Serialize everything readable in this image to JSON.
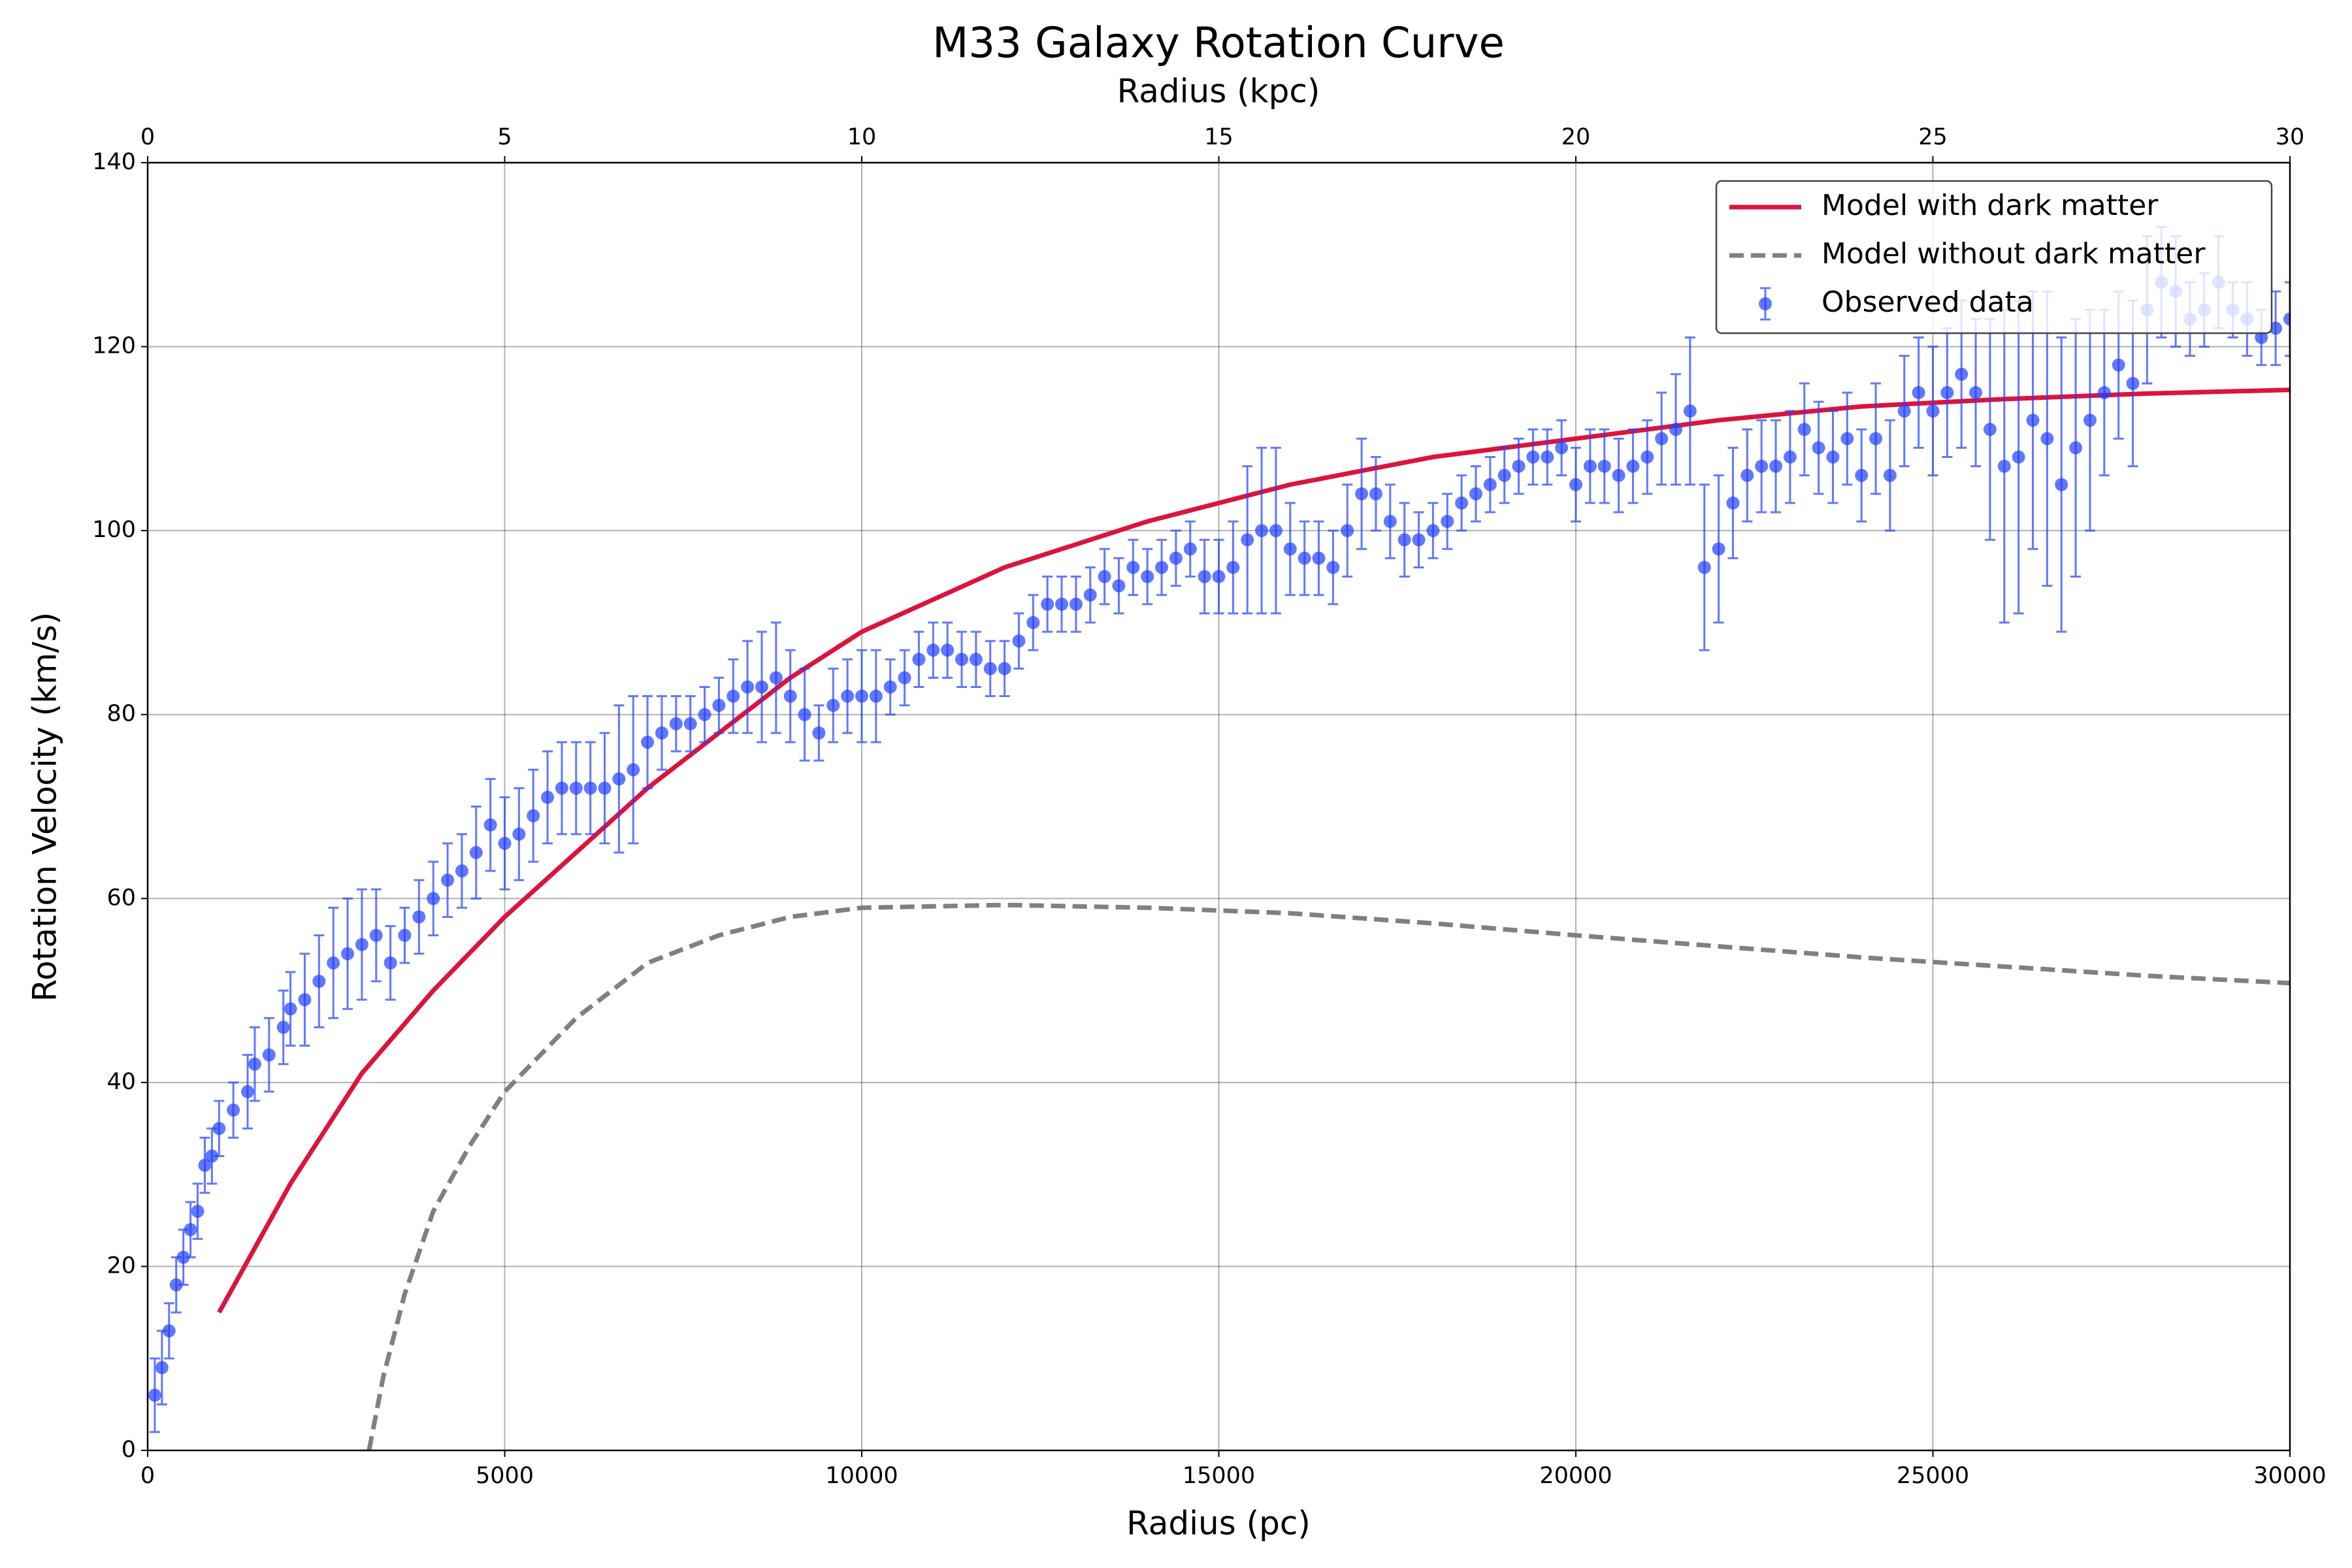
{
  "chart_data": {
    "type": "line",
    "title": "M33 Galaxy Rotation Curve",
    "xlabel": "Radius (pc)",
    "ylabel": "Rotation Velocity (km/s)",
    "x2label": "Radius (kpc)",
    "xlim": [
      0,
      30000
    ],
    "xticks": [
      0,
      5000,
      10000,
      15000,
      20000,
      25000,
      30000
    ],
    "x2lim": [
      0,
      30
    ],
    "x2ticks": [
      0,
      5,
      10,
      15,
      20,
      25,
      30
    ],
    "ylim": [
      0,
      140
    ],
    "yticks": [
      0,
      20,
      40,
      60,
      80,
      100,
      120,
      140
    ],
    "grid": true,
    "legend": "upper right",
    "series": [
      {
        "name": "Model with dark matter",
        "color": "#dc143c",
        "style": "solid",
        "x": [
          1000,
          1500,
          2000,
          2500,
          3000,
          4000,
          5000,
          6000,
          7000,
          8000,
          9000,
          10000,
          12000,
          14000,
          16000,
          18000,
          20000,
          22000,
          24000,
          26000,
          28000,
          30000
        ],
        "values": [
          15,
          22,
          29,
          35,
          41,
          50,
          58,
          65,
          72,
          78,
          84,
          89,
          96,
          101,
          105,
          108,
          110,
          112,
          113.5,
          114.3,
          114.9,
          115.3
        ]
      },
      {
        "name": "Model without dark matter",
        "color": "#808080",
        "style": "dashed",
        "x": [
          3100,
          3300,
          3600,
          4000,
          4500,
          5000,
          6000,
          7000,
          8000,
          9000,
          10000,
          12000,
          14000,
          16000,
          18000,
          20000,
          22000,
          24000,
          26000,
          28000,
          30000
        ],
        "values": [
          0,
          8,
          17,
          26,
          33,
          39,
          47,
          53,
          56,
          58,
          59,
          59.3,
          59,
          58.4,
          57.3,
          56,
          54.8,
          53.6,
          52.6,
          51.6,
          50.8
        ]
      },
      {
        "name": "Observed data",
        "color": "#1f3fff",
        "style": "errorbar",
        "x": [
          100,
          200,
          300,
          400,
          500,
          600,
          700,
          800,
          900,
          1000,
          1200,
          1400,
          1500,
          1700,
          1900,
          2000,
          2200,
          2400,
          2600,
          2800,
          3000,
          3200,
          3400,
          3600,
          3800,
          4000,
          4200,
          4400,
          4600,
          4800,
          5000,
          5200,
          5400,
          5600,
          5800,
          6000,
          6200,
          6400,
          6600,
          6800,
          7000,
          7200,
          7400,
          7600,
          7800,
          8000,
          8200,
          8400,
          8600,
          8800,
          9000,
          9200,
          9400,
          9600,
          9800,
          10000,
          10200,
          10400,
          10600,
          10800,
          11000,
          11200,
          11400,
          11600,
          11800,
          12000,
          12200,
          12400,
          12600,
          12800,
          13000,
          13200,
          13400,
          13600,
          13800,
          14000,
          14200,
          14400,
          14600,
          14800,
          15000,
          15200,
          15400,
          15600,
          15800,
          16000,
          16200,
          16400,
          16600,
          16800,
          17000,
          17200,
          17400,
          17600,
          17800,
          18000,
          18200,
          18400,
          18600,
          18800,
          19000,
          19200,
          19400,
          19600,
          19800,
          20000,
          20200,
          20400,
          20600,
          20800,
          21000,
          21200,
          21400,
          21600,
          21800,
          22000,
          22200,
          22400,
          22600,
          22800,
          23000,
          23200,
          23400,
          23600,
          23800,
          24000,
          24200,
          24400,
          24600,
          24800,
          25000,
          25200,
          25400,
          25600,
          25800,
          26000,
          26200,
          26400,
          26600,
          26800,
          27000,
          27200,
          27400,
          27600,
          27800,
          28000,
          28200,
          28400,
          28600,
          28800,
          29000,
          29200,
          29400,
          29600,
          29800,
          30000
        ],
        "values": [
          6,
          9,
          13,
          18,
          21,
          24,
          26,
          31,
          32,
          35,
          37,
          39,
          42,
          43,
          46,
          48,
          49,
          51,
          53,
          54,
          55,
          56,
          53,
          56,
          58,
          60,
          62,
          63,
          65,
          68,
          66,
          67,
          69,
          71,
          72,
          72,
          72,
          72,
          73,
          74,
          77,
          78,
          79,
          79,
          80,
          81,
          82,
          83,
          83,
          84,
          82,
          80,
          78,
          81,
          82,
          82,
          82,
          83,
          84,
          86,
          87,
          87,
          86,
          86,
          85,
          85,
          88,
          90,
          92,
          92,
          92,
          93,
          95,
          94,
          96,
          95,
          96,
          97,
          98,
          95,
          95,
          96,
          99,
          100,
          100,
          98,
          97,
          97,
          96,
          100,
          104,
          104,
          101,
          99,
          99,
          100,
          101,
          103,
          104,
          105,
          106,
          107,
          108,
          108,
          109,
          105,
          107,
          107,
          106,
          107,
          108,
          110,
          111,
          113,
          96,
          98,
          103,
          106,
          107,
          107,
          108,
          111,
          109,
          108,
          110,
          106,
          110,
          106,
          113,
          115,
          113,
          115,
          117,
          115,
          111,
          107,
          108,
          112,
          110,
          105,
          109,
          112,
          115,
          118,
          116,
          124,
          127,
          126,
          123,
          124,
          127,
          124,
          123,
          121,
          122,
          123
        ],
        "errors": [
          4,
          4,
          3,
          3,
          3,
          3,
          3,
          3,
          3,
          3,
          3,
          4,
          4,
          4,
          4,
          4,
          5,
          5,
          6,
          6,
          6,
          5,
          4,
          3,
          4,
          4,
          4,
          4,
          5,
          5,
          5,
          5,
          5,
          5,
          5,
          5,
          5,
          6,
          8,
          8,
          5,
          4,
          3,
          3,
          3,
          3,
          4,
          5,
          6,
          6,
          5,
          5,
          3,
          4,
          4,
          5,
          5,
          3,
          3,
          3,
          3,
          3,
          3,
          3,
          3,
          3,
          3,
          3,
          3,
          3,
          3,
          3,
          3,
          3,
          3,
          3,
          3,
          3,
          3,
          4,
          4,
          5,
          8,
          9,
          9,
          5,
          4,
          4,
          4,
          5,
          6,
          4,
          4,
          4,
          3,
          3,
          3,
          3,
          3,
          3,
          3,
          3,
          3,
          3,
          3,
          4,
          4,
          4,
          4,
          4,
          4,
          5,
          6,
          8,
          9,
          8,
          6,
          5,
          5,
          5,
          5,
          5,
          5,
          5,
          5,
          5,
          6,
          6,
          6,
          6,
          7,
          7,
          8,
          8,
          12,
          17,
          17,
          14,
          16,
          16,
          14,
          12,
          9,
          8,
          9,
          8,
          6,
          6,
          4,
          4,
          5,
          3,
          4,
          3,
          4,
          4
        ]
      }
    ]
  }
}
